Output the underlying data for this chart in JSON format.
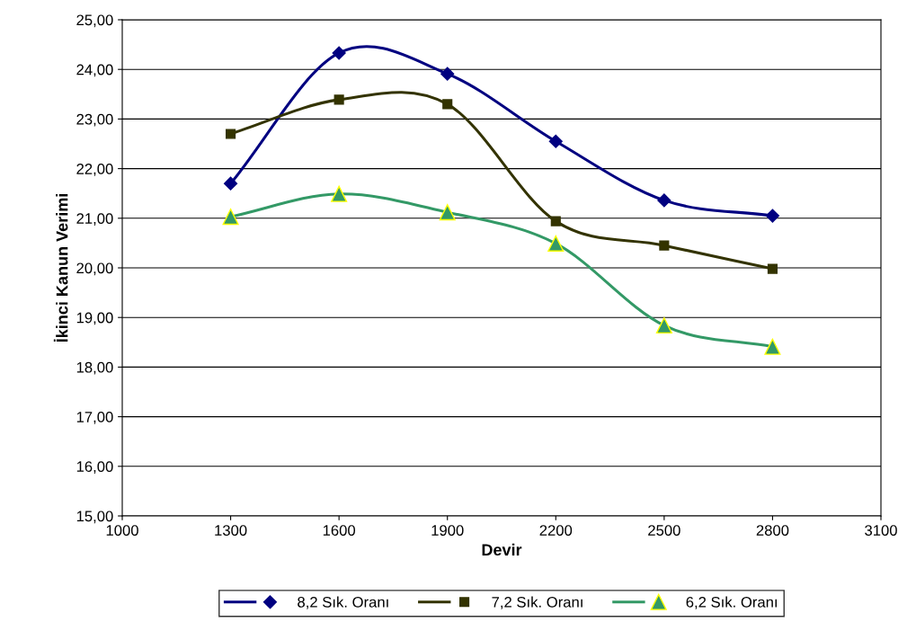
{
  "chart_data": {
    "type": "line",
    "xlabel": "Devir",
    "ylabel": "İkinci Kanun Verimi",
    "x": [
      1300,
      1600,
      1900,
      2200,
      2500,
      2800
    ],
    "series": [
      {
        "name": "8,2 Sık. Oranı",
        "color": "#000080",
        "marker": "diamond",
        "values": [
          21.7,
          24.33,
          23.91,
          22.55,
          21.36,
          21.05
        ]
      },
      {
        "name": "7,2 Sık. Oranı",
        "color": "#333300",
        "marker": "square",
        "values": [
          22.7,
          23.39,
          23.3,
          20.94,
          20.45,
          19.98
        ]
      },
      {
        "name": "6,2 Sık. Oranı",
        "color": "#339966",
        "marker": "triangle",
        "values": [
          21.03,
          21.49,
          21.12,
          20.49,
          18.84,
          18.41
        ]
      }
    ],
    "xlim": [
      1000,
      3100
    ],
    "xticks": [
      1000,
      1300,
      1600,
      1900,
      2200,
      2500,
      2800,
      3100
    ],
    "ylim": [
      15,
      25
    ],
    "yticks": [
      {
        "value": 15,
        "label": "15,00"
      },
      {
        "value": 16,
        "label": "16,00"
      },
      {
        "value": 17,
        "label": "17,00"
      },
      {
        "value": 18,
        "label": "18,00"
      },
      {
        "value": 19,
        "label": "19,00"
      },
      {
        "value": 20,
        "label": "20,00"
      },
      {
        "value": 21,
        "label": "21,00"
      },
      {
        "value": 22,
        "label": "22,00"
      },
      {
        "value": 23,
        "label": "23,00"
      },
      {
        "value": 24,
        "label": "24,00"
      },
      {
        "value": 25,
        "label": "25,00"
      }
    ],
    "grid": "y",
    "legend": "bottom",
    "line_style": "solid"
  }
}
